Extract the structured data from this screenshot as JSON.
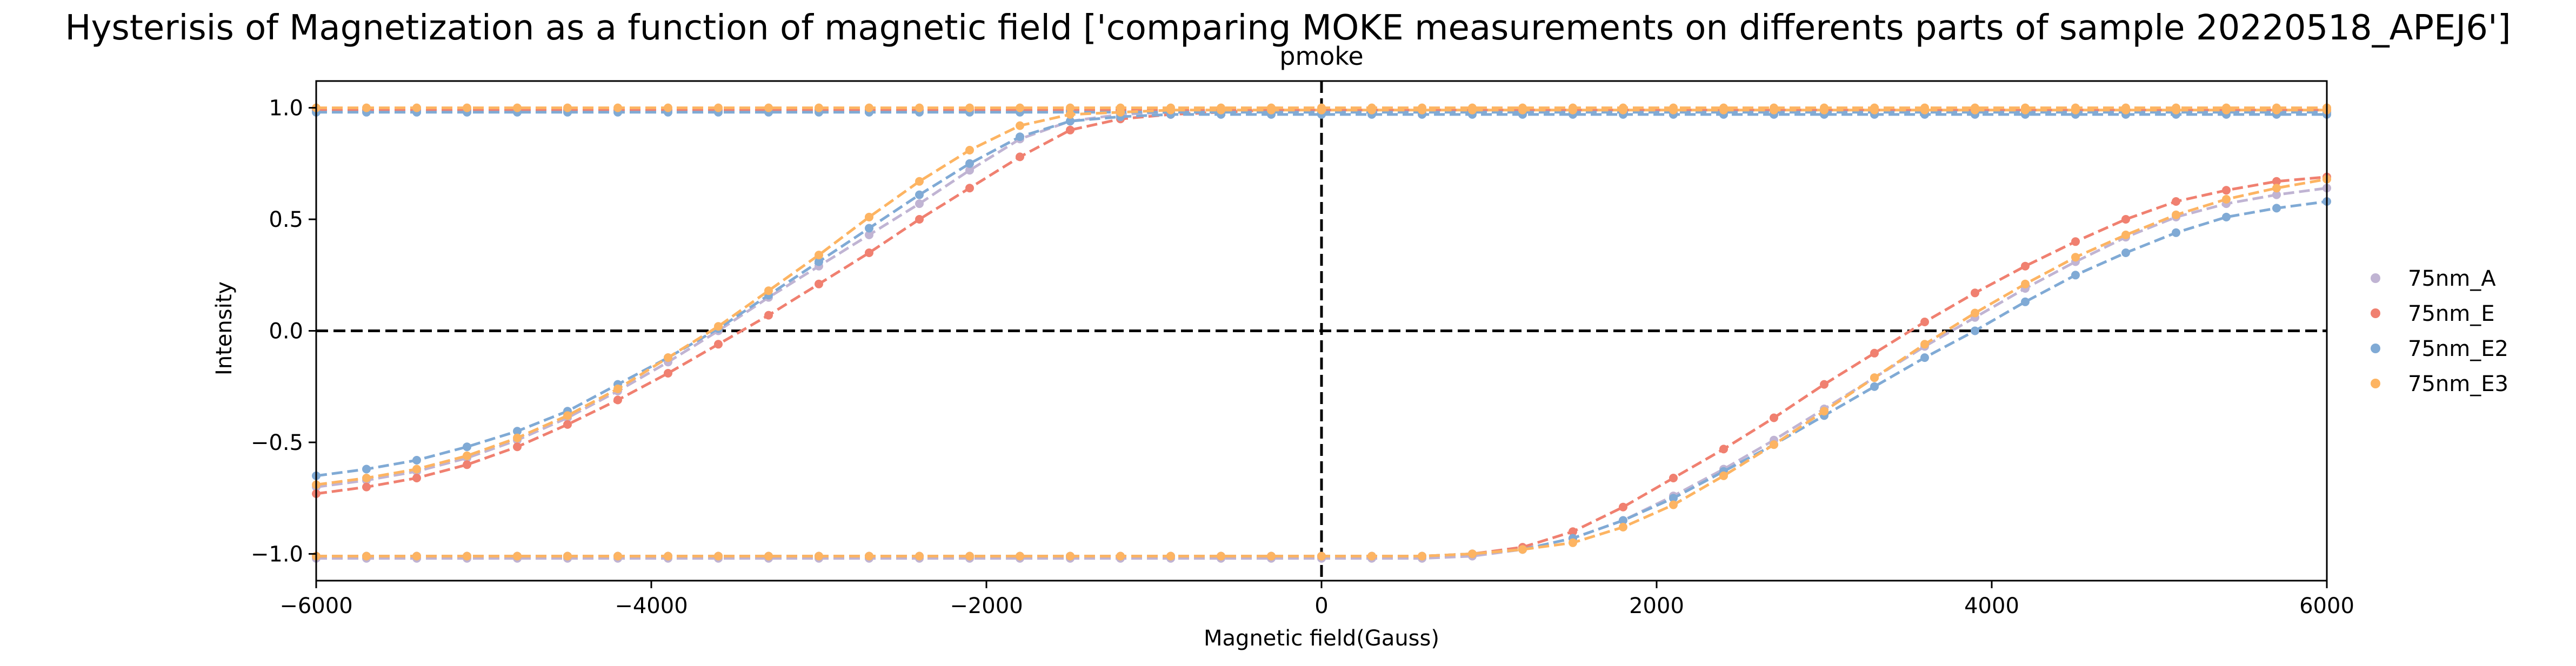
{
  "chart_data": {
    "type": "line",
    "title": "Hysterisis of Magnetization as a function of magnetic field ['comparing MOKE measurements on differents parts of sample 20220518_APEJ6']",
    "subtitle": "pmoke",
    "xlabel": "Magnetic field(Gauss)",
    "ylabel": "Intensity",
    "xlim": [
      -6000,
      6000
    ],
    "ylim": [
      -1.12,
      1.12
    ],
    "xticks": [
      -6000,
      -4000,
      -2000,
      0,
      2000,
      4000,
      6000
    ],
    "xtick_labels": [
      "−6000",
      "−4000",
      "−2000",
      "0",
      "2000",
      "4000",
      "6000"
    ],
    "yticks": [
      1.0,
      0.5,
      0.0,
      -0.5,
      -1.0
    ],
    "ytick_labels": [
      "1.0",
      "0.5",
      "0.0",
      "−0.5",
      "−1.0"
    ],
    "reference_lines": {
      "x": 0,
      "y": 0,
      "style": "dashed",
      "color": "#000000"
    },
    "legend_position": "center-right-outside",
    "x": [
      -6000,
      -5700,
      -5400,
      -5100,
      -4800,
      -4500,
      -4200,
      -3900,
      -3600,
      -3300,
      -3000,
      -2700,
      -2400,
      -2100,
      -1800,
      -1500,
      -1200,
      -900,
      -600,
      -300,
      0,
      300,
      600,
      900,
      1200,
      1500,
      1800,
      2100,
      2400,
      2700,
      3000,
      3300,
      3600,
      3900,
      4200,
      4500,
      4800,
      5100,
      5400,
      5700,
      6000
    ],
    "series": [
      {
        "name": "75nm_A",
        "color": "#c0b4d3",
        "branch_decreasing": [
          0.99,
          0.99,
          0.99,
          0.99,
          0.99,
          0.99,
          0.99,
          0.99,
          0.99,
          0.99,
          0.99,
          0.99,
          0.99,
          0.99,
          0.99,
          0.99,
          0.99,
          0.99,
          0.99,
          0.99,
          0.99,
          0.99,
          0.99,
          0.99,
          0.99,
          0.99,
          0.99,
          0.99,
          0.99,
          0.99,
          0.99,
          0.99,
          0.99,
          0.99,
          0.99,
          0.99,
          0.99,
          0.99,
          0.99,
          0.99,
          0.99
        ],
        "branch_increasing": [
          -0.7,
          -0.67,
          -0.63,
          -0.57,
          -0.49,
          -0.39,
          -0.27,
          -0.14,
          0.0,
          0.15,
          0.29,
          0.43,
          0.57,
          0.72,
          0.86,
          0.94,
          0.97,
          0.98,
          0.99,
          0.99,
          0.99,
          0.99,
          0.99,
          0.99,
          0.99,
          0.99,
          0.99,
          0.99,
          0.99,
          0.99,
          0.99,
          0.99,
          0.99,
          0.99,
          0.99,
          0.99,
          0.99,
          0.99,
          0.99,
          0.99,
          0.99
        ],
        "branch_lower": [
          -1.02,
          -1.02,
          -1.02,
          -1.02,
          -1.02,
          -1.02,
          -1.02,
          -1.02,
          -1.02,
          -1.02,
          -1.02,
          -1.02,
          -1.02,
          -1.02,
          -1.02,
          -1.02,
          -1.02,
          -1.02,
          -1.02,
          -1.02,
          -1.02,
          -1.02,
          -1.02,
          -1.01,
          -0.98,
          -0.93,
          -0.85,
          -0.74,
          -0.62,
          -0.49,
          -0.35,
          -0.21,
          -0.07,
          0.06,
          0.19,
          0.31,
          0.42,
          0.51,
          0.57,
          0.61,
          0.64
        ]
      },
      {
        "name": "75nm_E",
        "color": "#f08070",
        "branch_decreasing": [
          0.99,
          0.99,
          0.99,
          0.99,
          0.99,
          0.99,
          0.99,
          0.99,
          0.99,
          0.99,
          0.99,
          0.99,
          0.99,
          0.99,
          0.99,
          0.99,
          0.99,
          0.99,
          0.99,
          0.99,
          0.99,
          0.99,
          0.99,
          0.99,
          0.99,
          0.99,
          0.99,
          0.99,
          0.99,
          0.99,
          0.99,
          0.99,
          0.99,
          0.99,
          0.99,
          0.99,
          0.99,
          0.99,
          0.99,
          0.99,
          0.99
        ],
        "branch_increasing": [
          -0.73,
          -0.7,
          -0.66,
          -0.6,
          -0.52,
          -0.42,
          -0.31,
          -0.19,
          -0.06,
          0.07,
          0.21,
          0.35,
          0.5,
          0.64,
          0.78,
          0.9,
          0.95,
          0.97,
          0.98,
          0.99,
          0.99,
          0.99,
          0.99,
          0.99,
          0.99,
          0.99,
          0.99,
          0.99,
          0.99,
          0.99,
          0.99,
          0.99,
          0.99,
          0.99,
          0.99,
          0.99,
          0.99,
          0.99,
          0.99,
          0.99,
          0.99
        ],
        "branch_lower": [
          -1.01,
          -1.01,
          -1.01,
          -1.01,
          -1.01,
          -1.01,
          -1.01,
          -1.01,
          -1.01,
          -1.01,
          -1.01,
          -1.01,
          -1.01,
          -1.01,
          -1.01,
          -1.01,
          -1.01,
          -1.01,
          -1.01,
          -1.01,
          -1.01,
          -1.01,
          -1.01,
          -1.0,
          -0.97,
          -0.9,
          -0.79,
          -0.66,
          -0.53,
          -0.39,
          -0.24,
          -0.1,
          0.04,
          0.17,
          0.29,
          0.4,
          0.5,
          0.58,
          0.63,
          0.67,
          0.69
        ]
      },
      {
        "name": "75nm_E2",
        "color": "#80aad5",
        "branch_decreasing": [
          0.98,
          0.98,
          0.98,
          0.98,
          0.98,
          0.98,
          0.98,
          0.98,
          0.98,
          0.98,
          0.98,
          0.98,
          0.98,
          0.98,
          0.98,
          0.98,
          0.98,
          0.98,
          0.98,
          0.98,
          0.98,
          0.98,
          0.98,
          0.98,
          0.98,
          0.98,
          0.98,
          0.98,
          0.98,
          0.98,
          0.98,
          0.98,
          0.98,
          0.98,
          0.98,
          0.98,
          0.98,
          0.98,
          0.98,
          0.98,
          0.98
        ],
        "branch_increasing": [
          -0.65,
          -0.62,
          -0.58,
          -0.52,
          -0.45,
          -0.36,
          -0.24,
          -0.12,
          0.01,
          0.16,
          0.31,
          0.46,
          0.61,
          0.75,
          0.87,
          0.94,
          0.96,
          0.97,
          0.97,
          0.97,
          0.97,
          0.97,
          0.97,
          0.97,
          0.97,
          0.97,
          0.97,
          0.97,
          0.97,
          0.97,
          0.97,
          0.97,
          0.97,
          0.97,
          0.97,
          0.97,
          0.97,
          0.97,
          0.97,
          0.97,
          0.97
        ],
        "branch_lower": [
          -1.01,
          -1.01,
          -1.01,
          -1.01,
          -1.01,
          -1.01,
          -1.01,
          -1.01,
          -1.01,
          -1.01,
          -1.01,
          -1.01,
          -1.01,
          -1.01,
          -1.01,
          -1.01,
          -1.01,
          -1.01,
          -1.01,
          -1.01,
          -1.01,
          -1.01,
          -1.01,
          -1.0,
          -0.98,
          -0.93,
          -0.85,
          -0.75,
          -0.63,
          -0.51,
          -0.38,
          -0.25,
          -0.12,
          0.0,
          0.13,
          0.25,
          0.35,
          0.44,
          0.51,
          0.55,
          0.58
        ]
      },
      {
        "name": "75nm_E3",
        "color": "#fdb462",
        "branch_decreasing": [
          1.0,
          1.0,
          1.0,
          1.0,
          1.0,
          1.0,
          1.0,
          1.0,
          1.0,
          1.0,
          1.0,
          1.0,
          1.0,
          1.0,
          1.0,
          1.0,
          1.0,
          1.0,
          1.0,
          1.0,
          1.0,
          1.0,
          1.0,
          1.0,
          1.0,
          1.0,
          1.0,
          1.0,
          1.0,
          1.0,
          1.0,
          1.0,
          1.0,
          1.0,
          1.0,
          1.0,
          1.0,
          1.0,
          1.0,
          1.0,
          1.0
        ],
        "branch_increasing": [
          -0.69,
          -0.66,
          -0.62,
          -0.56,
          -0.48,
          -0.38,
          -0.26,
          -0.12,
          0.02,
          0.18,
          0.34,
          0.51,
          0.67,
          0.81,
          0.92,
          0.97,
          0.98,
          0.99,
          0.99,
          0.99,
          0.99,
          0.99,
          0.99,
          0.99,
          0.99,
          0.99,
          0.99,
          0.99,
          0.99,
          0.99,
          0.99,
          0.99,
          0.99,
          0.99,
          0.99,
          0.99,
          0.99,
          0.99,
          0.99,
          0.99,
          0.99
        ],
        "branch_lower": [
          -1.01,
          -1.01,
          -1.01,
          -1.01,
          -1.01,
          -1.01,
          -1.01,
          -1.01,
          -1.01,
          -1.01,
          -1.01,
          -1.01,
          -1.01,
          -1.01,
          -1.01,
          -1.01,
          -1.01,
          -1.01,
          -1.01,
          -1.01,
          -1.01,
          -1.01,
          -1.01,
          -1.0,
          -0.98,
          -0.95,
          -0.88,
          -0.78,
          -0.65,
          -0.51,
          -0.36,
          -0.21,
          -0.06,
          0.08,
          0.21,
          0.33,
          0.43,
          0.52,
          0.59,
          0.64,
          0.68
        ]
      }
    ]
  }
}
